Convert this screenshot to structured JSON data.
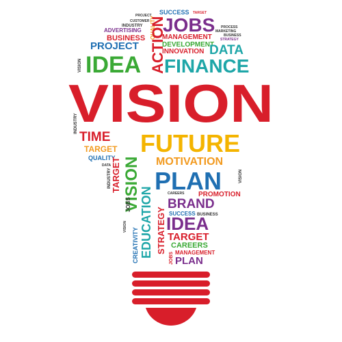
{
  "words": {
    "success_top": "SUCCESS",
    "target_top": "TARGET",
    "jobs": "JOBS",
    "quality_v": "QUALITY",
    "action": "ACTION",
    "small_a": "TIME",
    "small_b": "PROJECT",
    "customer": "CUSTOMER",
    "industry_top": "INDUSTRY",
    "advertising": "ADVERTISING",
    "business_top": "BUSINESS",
    "management_top": "MANAGEMENT",
    "process_top": "PROCESS",
    "marketing": "MARKETING",
    "business_small": "BUSINESS",
    "strategy_small": "STRATEGY",
    "project": "PROJECT",
    "development": "DEVELOPMENT",
    "innovation": "INNOVATION",
    "data": "DATA",
    "vision_tiny": "VISION",
    "idea": "IDEA",
    "finance": "FINANCE",
    "vision_big": "VISION",
    "industry_left": "INDUSTRY",
    "time": "TIME",
    "target_mid": "TARGET",
    "quality_mid": "QUALITY",
    "data_mid": "DATA",
    "industry_mid": "INDUSTRY",
    "target_v": "TARGET",
    "vision_v": "VISION",
    "future": "FUTURE",
    "motivation": "MOTIVATION",
    "plan_big": "PLAN",
    "vision_right": "VISION",
    "promotion": "PROMOTION",
    "careers_small": "CAREERS",
    "brand": "BRAND",
    "jobs_mid": "JOBS",
    "education": "EDUCATION",
    "success_mid": "SUCCESS",
    "business_mid": "BUSINESS",
    "strategy_v": "STRATEGY",
    "vision_tiny2": "VISION",
    "creativity": "CREATIVITY",
    "idea_mid": "IDEA",
    "target_low": "TARGET",
    "careers": "CAREERS",
    "jobs_low": "JOBS",
    "management_low": "MANAGEMENT",
    "plan_low": "PLAN"
  },
  "colors": {
    "red": "#d81e2a",
    "purple": "#7a2e8c",
    "blue": "#1f6fb2",
    "teal": "#1ea6a8",
    "green": "#3aa935",
    "orange": "#f29a1f",
    "yellow": "#f4b400",
    "magenta": "#c2185b",
    "dark": "#333333"
  }
}
